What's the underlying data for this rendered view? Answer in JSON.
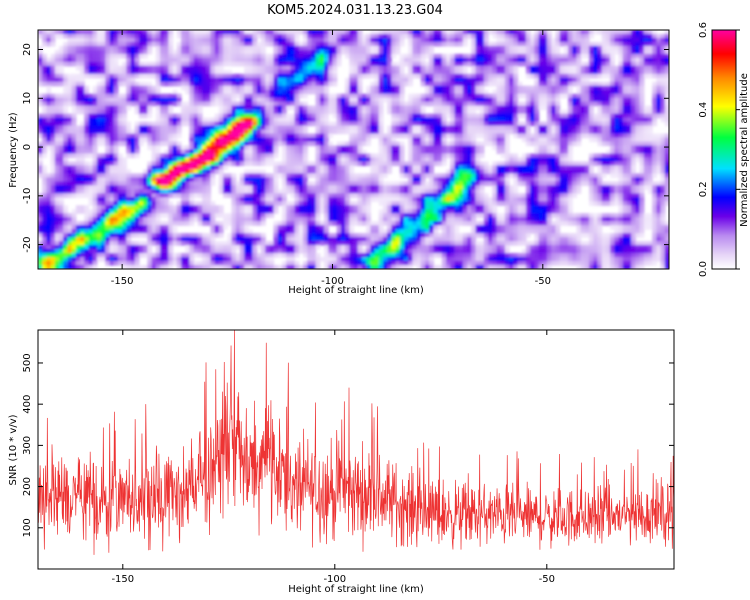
{
  "figure_title": "KOM5.2024.031.13.23.G04",
  "colors": {
    "snr_line": "#ee3333",
    "frame": "#000000",
    "colormap": [
      "#ffffff",
      "#e6d5f7",
      "#b98af0",
      "#8b3bef",
      "#6a00e8",
      "#0000ff",
      "#00e0ff",
      "#00ff40",
      "#ffff00",
      "#ff8800",
      "#ff0000",
      "#ff00a0"
    ]
  },
  "chart_data": [
    {
      "type": "heatmap",
      "title": "",
      "xlabel": "Height of straight line (km)",
      "ylabel": "Frequency (Hz)",
      "xlim": [
        -170,
        -20
      ],
      "ylim": [
        -25,
        24
      ],
      "x_ticks": [
        -150,
        -100,
        -50
      ],
      "y_ticks": [
        -20,
        -10,
        0,
        10,
        20
      ],
      "colorbar": {
        "label": "Normalized spectral amplitude",
        "range": [
          0.0,
          0.6
        ],
        "ticks": [
          0.0,
          0.2,
          0.4,
          0.6
        ]
      },
      "background_level": 0.12,
      "ridges": [
        {
          "description_points": [
            [
              -168,
              -24
            ],
            [
              -160,
              -20
            ],
            [
              -150,
              -14
            ],
            [
              -146,
              -12
            ]
          ],
          "peak": 0.32
        },
        {
          "description_points": [
            [
              -140,
              -7
            ],
            [
              -135,
              -4
            ],
            [
              -130,
              -2
            ],
            [
              -126,
              1
            ],
            [
              -122,
              4
            ],
            [
              -120,
              5
            ]
          ],
          "peak": 0.55
        },
        {
          "description_points": [
            [
              -113,
              11
            ],
            [
              -108,
              15
            ],
            [
              -103,
              18
            ]
          ],
          "peak": 0.18
        },
        {
          "description_points": [
            [
              -90,
              -24
            ],
            [
              -85,
              -20
            ],
            [
              -80,
              -16
            ],
            [
              -75,
              -12
            ],
            [
              -70,
              -8
            ],
            [
              -68,
              -6
            ]
          ],
          "peak": 0.25
        }
      ]
    },
    {
      "type": "line",
      "title": "",
      "xlabel": "Height of straight line (km)",
      "ylabel": "SNR (10 * v/v)",
      "xlim": [
        -170,
        -20
      ],
      "ylim": [
        0,
        580
      ],
      "x_ticks": [
        -150,
        -100,
        -50
      ],
      "y_ticks": [
        100,
        200,
        300,
        400,
        500
      ],
      "envelope": [
        {
          "x": -170,
          "mean": 180,
          "amp": 170
        },
        {
          "x": -160,
          "mean": 160,
          "amp": 160
        },
        {
          "x": -150,
          "mean": 160,
          "amp": 150
        },
        {
          "x": -140,
          "mean": 170,
          "amp": 150
        },
        {
          "x": -130,
          "mean": 220,
          "amp": 190
        },
        {
          "x": -125,
          "mean": 330,
          "amp": 240
        },
        {
          "x": -120,
          "mean": 230,
          "amp": 160
        },
        {
          "x": -116,
          "mean": 300,
          "amp": 230
        },
        {
          "x": -110,
          "mean": 200,
          "amp": 170
        },
        {
          "x": -100,
          "mean": 190,
          "amp": 170
        },
        {
          "x": -90,
          "mean": 180,
          "amp": 150
        },
        {
          "x": -80,
          "mean": 140,
          "amp": 120
        },
        {
          "x": -70,
          "mean": 130,
          "amp": 110
        },
        {
          "x": -60,
          "mean": 130,
          "amp": 100
        },
        {
          "x": -50,
          "mean": 125,
          "amp": 100
        },
        {
          "x": -40,
          "mean": 125,
          "amp": 100
        },
        {
          "x": -30,
          "mean": 130,
          "amp": 100
        },
        {
          "x": -20,
          "mean": 140,
          "amp": 110
        }
      ]
    }
  ]
}
